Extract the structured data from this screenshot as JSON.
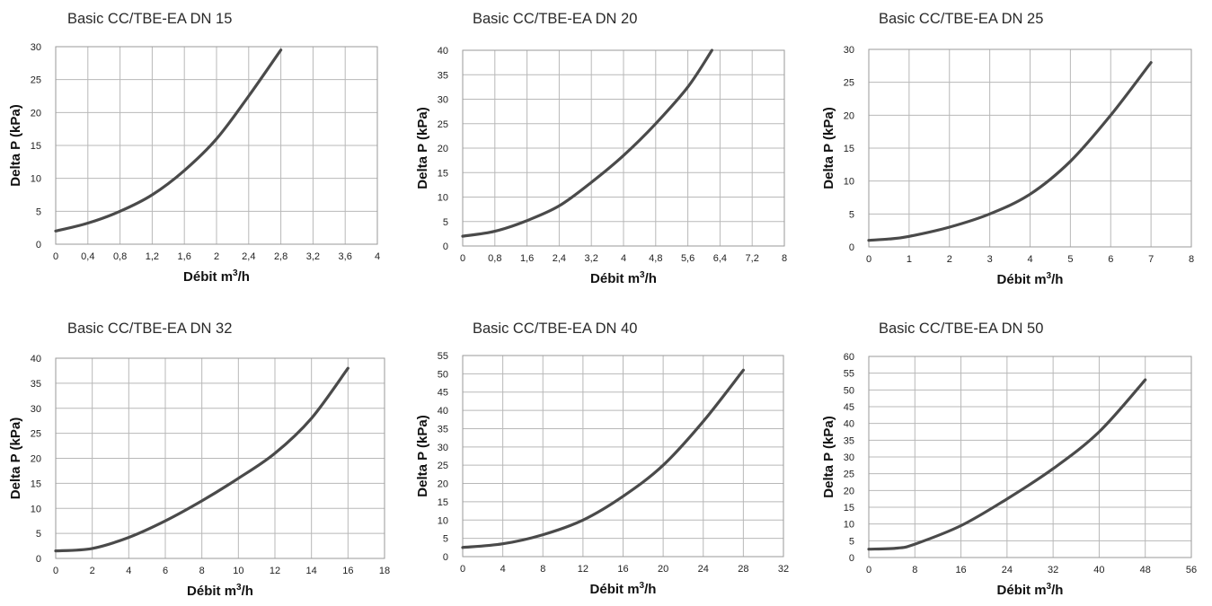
{
  "chart_data": [
    {
      "type": "line",
      "title": "Basic CC/TBE-EA DN 15",
      "xlabel": "Débit m³/h",
      "ylabel": "Delta P (kPa)",
      "x_ticks": [
        "0",
        "0,4",
        "0,8",
        "1,2",
        "1,6",
        "2",
        "2,4",
        "2,8",
        "3,2",
        "3,6",
        "4"
      ],
      "y_ticks": [
        "0",
        "5",
        "10",
        "15",
        "20",
        "25",
        "30"
      ],
      "xlim": [
        0,
        4
      ],
      "ylim": [
        0,
        30
      ],
      "grid": true,
      "line_color": "#4a4a4a",
      "series": [
        {
          "x": [
            0,
            0.4,
            0.8,
            1.2,
            1.6,
            2.0,
            2.4,
            2.8
          ],
          "y": [
            2,
            3.2,
            5.0,
            7.5,
            11.2,
            16.0,
            22.5,
            29.5
          ]
        }
      ]
    },
    {
      "type": "line",
      "title": "Basic CC/TBE-EA DN 20",
      "xlabel": "Débit m³/h",
      "ylabel": "Delta P (kPa)",
      "x_ticks": [
        "0",
        "0,8",
        "1,6",
        "2,4",
        "3,2",
        "4",
        "4,8",
        "5,6",
        "6,4",
        "7,2",
        "8"
      ],
      "y_ticks": [
        "0",
        "5",
        "10",
        "15",
        "20",
        "25",
        "30",
        "35",
        "40"
      ],
      "xlim": [
        0,
        8
      ],
      "ylim": [
        0,
        40
      ],
      "grid": true,
      "line_color": "#4a4a4a",
      "series": [
        {
          "x": [
            0,
            0.8,
            1.6,
            2.4,
            3.2,
            4.0,
            4.8,
            5.6,
            6.2
          ],
          "y": [
            2,
            3,
            5.2,
            8.2,
            13,
            18.5,
            25,
            32.5,
            40
          ]
        }
      ]
    },
    {
      "type": "line",
      "title": "Basic CC/TBE-EA DN 25",
      "xlabel": "Débit m³/h",
      "ylabel": "Delta P (kPa)",
      "x_ticks": [
        "0",
        "1",
        "2",
        "3",
        "4",
        "5",
        "6",
        "7",
        "8"
      ],
      "y_ticks": [
        "0",
        "5",
        "10",
        "15",
        "20",
        "25",
        "30"
      ],
      "xlim": [
        0,
        8
      ],
      "ylim": [
        0,
        30
      ],
      "grid": true,
      "line_color": "#4a4a4a",
      "series": [
        {
          "x": [
            0,
            0.5,
            1,
            2,
            3,
            4,
            5,
            6,
            7
          ],
          "y": [
            1,
            1.2,
            1.6,
            3,
            5,
            8,
            13,
            20,
            28
          ]
        }
      ]
    },
    {
      "type": "line",
      "title": "Basic CC/TBE-EA DN 32",
      "xlabel": "Débit m³/h",
      "ylabel": "Delta P (kPa)",
      "x_ticks": [
        "0",
        "2",
        "4",
        "6",
        "8",
        "10",
        "12",
        "14",
        "16",
        "18"
      ],
      "y_ticks": [
        "0",
        "5",
        "10",
        "15",
        "20",
        "25",
        "30",
        "35",
        "40"
      ],
      "xlim": [
        0,
        18
      ],
      "ylim": [
        0,
        40
      ],
      "grid": true,
      "line_color": "#4a4a4a",
      "series": [
        {
          "x": [
            0,
            2,
            4,
            6,
            8,
            10,
            12,
            14,
            16
          ],
          "y": [
            1.5,
            2,
            4.2,
            7.5,
            11.5,
            16,
            21,
            28,
            38
          ]
        }
      ]
    },
    {
      "type": "line",
      "title": "Basic CC/TBE-EA DN 40",
      "xlabel": "Débit m³/h",
      "ylabel": "Delta P (kPa)",
      "x_ticks": [
        "0",
        "4",
        "8",
        "12",
        "16",
        "20",
        "24",
        "28",
        "32"
      ],
      "y_ticks": [
        "0",
        "5",
        "10",
        "15",
        "20",
        "25",
        "30",
        "35",
        "40",
        "45",
        "50",
        "55"
      ],
      "xlim": [
        0,
        32
      ],
      "ylim": [
        0,
        55
      ],
      "grid": true,
      "line_color": "#4a4a4a",
      "series": [
        {
          "x": [
            0,
            4,
            8,
            12,
            16,
            20,
            24,
            28
          ],
          "y": [
            2.5,
            3.5,
            6,
            10,
            16.5,
            25,
            37,
            51
          ]
        }
      ]
    },
    {
      "type": "line",
      "title": "Basic CC/TBE-EA DN 50",
      "xlabel": "Débit m³/h",
      "ylabel": "Delta P (kPa)",
      "x_ticks": [
        "0",
        "8",
        "16",
        "24",
        "32",
        "40",
        "48",
        "56"
      ],
      "y_ticks": [
        "0",
        "5",
        "10",
        "15",
        "20",
        "25",
        "30",
        "35",
        "40",
        "45",
        "50",
        "55",
        "60"
      ],
      "xlim": [
        0,
        56
      ],
      "ylim": [
        0,
        60
      ],
      "grid": true,
      "line_color": "#4a4a4a",
      "series": [
        {
          "x": [
            0,
            5,
            8,
            16,
            24,
            32,
            40,
            48
          ],
          "y": [
            2.5,
            2.8,
            4,
            9.5,
            17.5,
            26.5,
            37.5,
            53
          ]
        }
      ]
    }
  ]
}
